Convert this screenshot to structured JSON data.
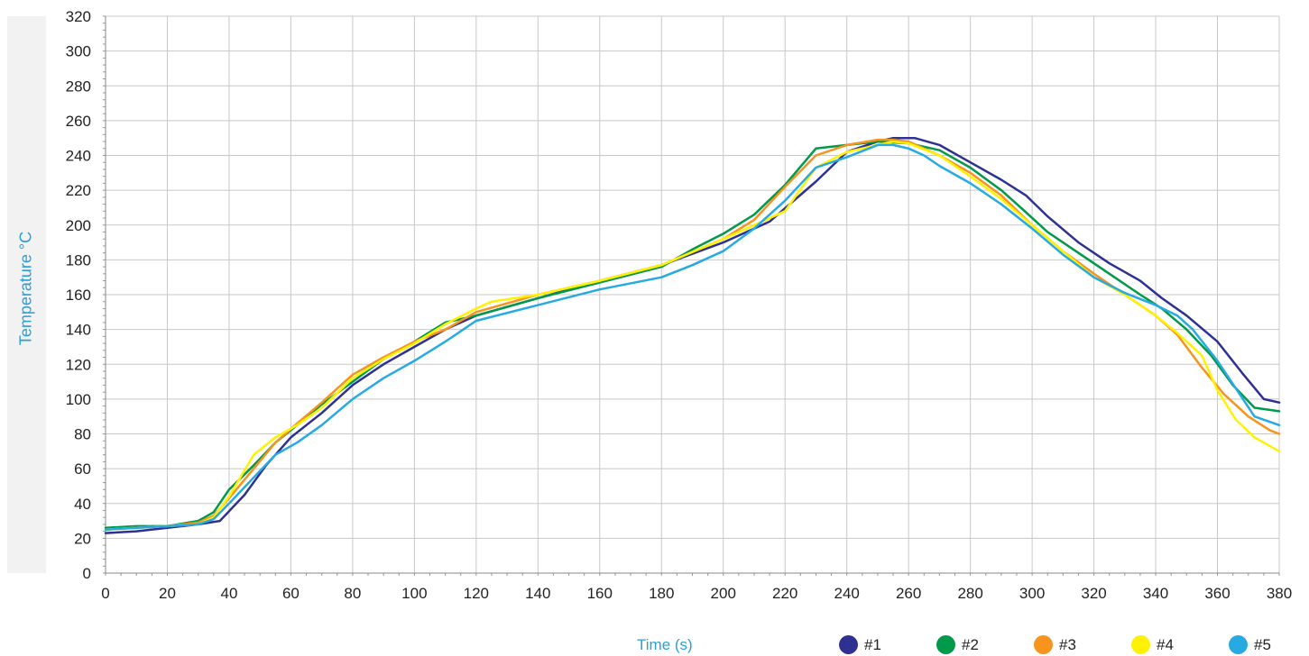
{
  "chart_data": {
    "type": "line",
    "title": "",
    "xlabel": "Time (s)",
    "ylabel": "Temperature °C",
    "xlim": [
      0,
      380
    ],
    "ylim": [
      0,
      320
    ],
    "x_ticks": [
      "0",
      "20",
      "40",
      "60",
      "80",
      "100",
      "120",
      "140",
      "160",
      "180",
      "200",
      "220",
      "240",
      "260",
      "280",
      "300",
      "320",
      "340",
      "360",
      "380"
    ],
    "y_ticks": [
      "0",
      "20",
      "40",
      "60",
      "80",
      "100",
      "120",
      "140",
      "160",
      "180",
      "200",
      "220",
      "240",
      "260",
      "280",
      "300",
      "320"
    ],
    "grid": true,
    "legend_position": "bottom-right",
    "series": [
      {
        "name": "#1",
        "color": "#2e3192",
        "x": [
          0,
          10,
          20,
          30,
          37,
          45,
          52,
          60,
          70,
          80,
          90,
          100,
          110,
          120,
          140,
          160,
          180,
          200,
          215,
          230,
          240,
          250,
          255,
          262,
          270,
          280,
          290,
          298,
          305,
          315,
          325,
          335,
          342,
          350,
          360,
          368,
          375,
          380
        ],
        "y": [
          23,
          24,
          26,
          28,
          30,
          45,
          62,
          78,
          92,
          108,
          120,
          130,
          140,
          148,
          158,
          168,
          177,
          190,
          202,
          225,
          242,
          248,
          250,
          250,
          246,
          236,
          226,
          217,
          205,
          190,
          178,
          168,
          158,
          148,
          133,
          115,
          100,
          98
        ]
      },
      {
        "name": "#2",
        "color": "#009a4a",
        "x": [
          0,
          10,
          20,
          30,
          35,
          40,
          48,
          55,
          62,
          70,
          80,
          90,
          100,
          110,
          120,
          140,
          160,
          180,
          190,
          200,
          210,
          220,
          230,
          240,
          250,
          260,
          270,
          280,
          290,
          297,
          305,
          315,
          325,
          335,
          342,
          350,
          358,
          365,
          372,
          380
        ],
        "y": [
          26,
          27,
          27,
          30,
          35,
          48,
          62,
          75,
          85,
          97,
          110,
          123,
          133,
          144,
          148,
          158,
          167,
          176,
          186,
          195,
          206,
          223,
          244,
          246,
          248,
          247,
          243,
          233,
          220,
          209,
          196,
          184,
          172,
          160,
          152,
          140,
          125,
          108,
          95,
          93
        ]
      },
      {
        "name": "#3",
        "color": "#f7941d",
        "x": [
          0,
          10,
          20,
          30,
          35,
          40,
          48,
          55,
          62,
          70,
          80,
          90,
          100,
          110,
          120,
          140,
          160,
          180,
          200,
          210,
          220,
          230,
          240,
          250,
          255,
          260,
          270,
          280,
          290,
          300,
          310,
          320,
          330,
          340,
          347,
          355,
          362,
          370,
          377,
          380
        ],
        "y": [
          25,
          26,
          27,
          29,
          33,
          43,
          60,
          75,
          86,
          98,
          114,
          124,
          133,
          140,
          150,
          160,
          168,
          177,
          192,
          203,
          222,
          240,
          246,
          249,
          249,
          248,
          240,
          230,
          217,
          200,
          185,
          172,
          160,
          148,
          137,
          118,
          103,
          90,
          82,
          80
        ]
      },
      {
        "name": "#4",
        "color": "#fff200",
        "x": [
          0,
          10,
          20,
          30,
          35,
          40,
          48,
          55,
          62,
          70,
          80,
          90,
          100,
          110,
          120,
          125,
          140,
          160,
          180,
          200,
          210,
          220,
          230,
          240,
          250,
          255,
          260,
          270,
          280,
          290,
          300,
          310,
          320,
          330,
          340,
          347,
          355,
          360,
          366,
          372,
          380
        ],
        "y": [
          25,
          26,
          27,
          28,
          32,
          44,
          68,
          78,
          85,
          95,
          112,
          123,
          132,
          143,
          152,
          156,
          160,
          168,
          177,
          192,
          200,
          208,
          233,
          242,
          246,
          248,
          247,
          240,
          228,
          215,
          200,
          185,
          170,
          160,
          148,
          138,
          125,
          105,
          88,
          78,
          70
        ]
      },
      {
        "name": "#5",
        "color": "#27aae1",
        "x": [
          0,
          10,
          20,
          30,
          35,
          40,
          48,
          55,
          62,
          70,
          80,
          90,
          100,
          110,
          120,
          140,
          160,
          180,
          190,
          200,
          210,
          220,
          230,
          240,
          250,
          255,
          260,
          265,
          270,
          280,
          290,
          300,
          310,
          320,
          330,
          340,
          347,
          352,
          360,
          366,
          372,
          380
        ],
        "y": [
          25,
          26,
          27,
          28,
          31,
          40,
          55,
          68,
          75,
          85,
          100,
          112,
          122,
          133,
          145,
          154,
          163,
          170,
          177,
          185,
          198,
          214,
          233,
          239,
          246,
          246,
          244,
          240,
          234,
          224,
          212,
          198,
          183,
          170,
          161,
          154,
          148,
          140,
          122,
          106,
          90,
          85
        ]
      }
    ]
  }
}
